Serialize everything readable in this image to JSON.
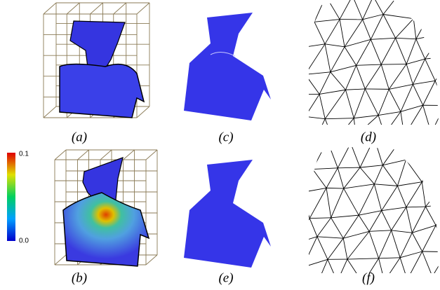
{
  "captions": [
    "(a)",
    "(c)",
    "(d)",
    "(b)",
    "(e)",
    "(f)"
  ],
  "colorbar": {
    "max_label": "0.1",
    "min_label": "0.0"
  }
}
